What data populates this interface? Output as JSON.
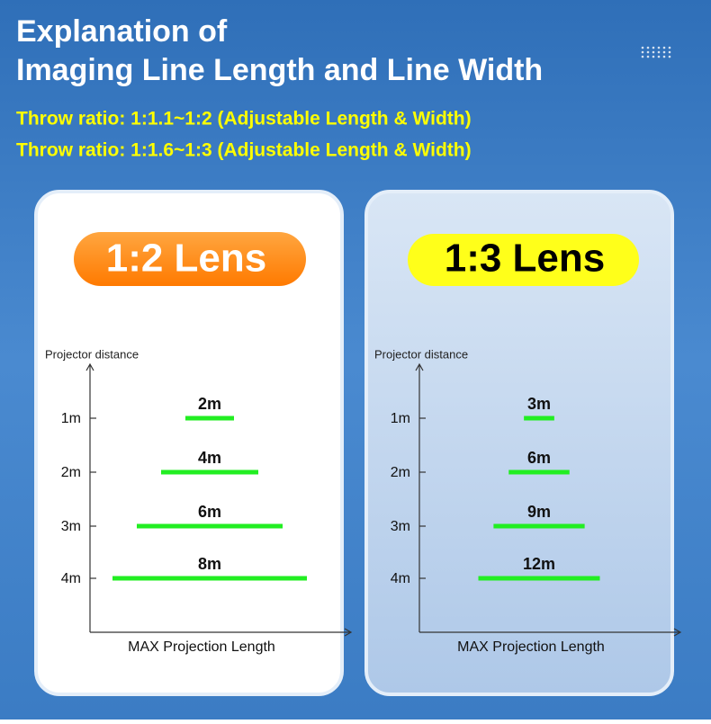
{
  "header": {
    "title_lines": [
      "Explanation of",
      "Imaging Line Length and Line Width"
    ],
    "subtitles": [
      "Throw ratio: 1:1.1~1:2 (Adjustable Length & Width)",
      "Throw ratio: 1:1.6~1:3 (Adjustable Length & Width)"
    ]
  },
  "chart_data": [
    {
      "type": "bar",
      "title": "1:2 Lens",
      "y_label": "Projector distance",
      "x_label": "MAX Projection Length",
      "categories": [
        "1m",
        "2m",
        "3m",
        "4m"
      ],
      "values": [
        2,
        4,
        6,
        8
      ],
      "value_labels": [
        "2m",
        "4m",
        "6m",
        "8m"
      ],
      "color": "#22ee22",
      "xlim": [
        0,
        10
      ]
    },
    {
      "type": "bar",
      "title": "1:3 Lens",
      "y_label": "Projector distance",
      "x_label": "MAX Projection Length",
      "categories": [
        "1m",
        "2m",
        "3m",
        "4m"
      ],
      "values": [
        3,
        6,
        9,
        12
      ],
      "value_labels": [
        "3m",
        "6m",
        "9m",
        "12m"
      ],
      "color": "#22ee22",
      "xlim": [
        0,
        24
      ]
    }
  ]
}
